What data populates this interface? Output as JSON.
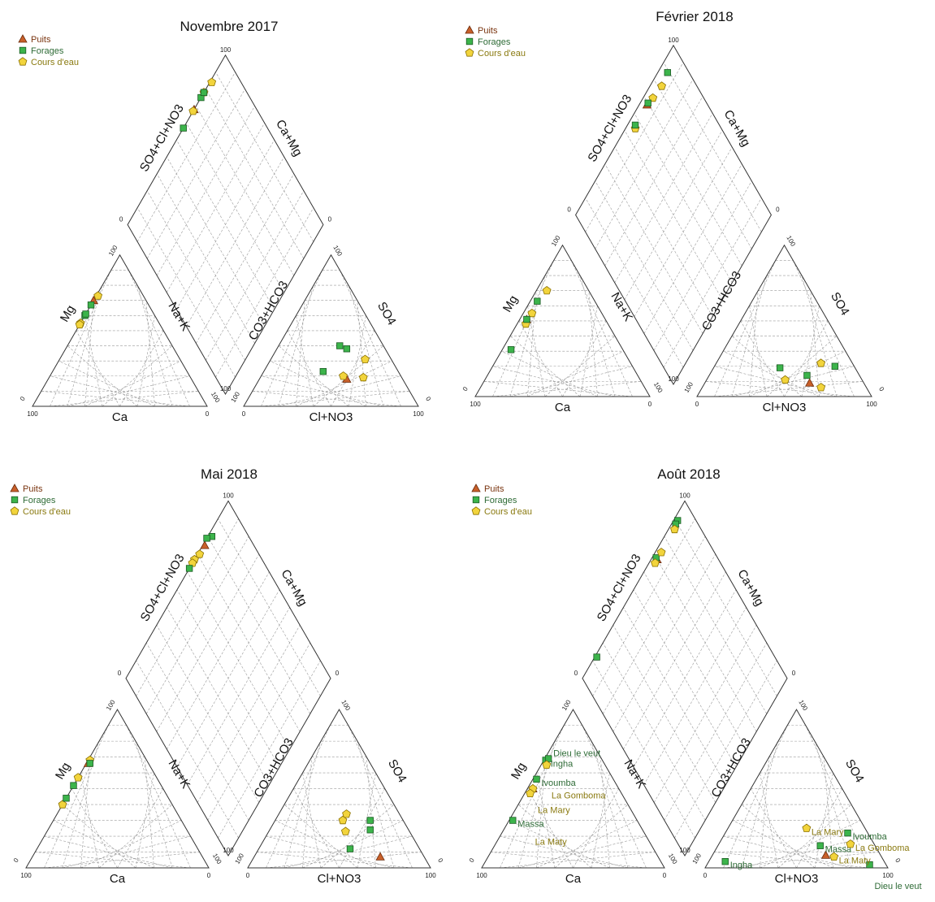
{
  "legend": {
    "puits": "Puits",
    "forages": "Forages",
    "cours": "Cours d'eau"
  },
  "axis_labels": {
    "ca": "Ca",
    "mg": "Mg",
    "nak": "Na+K",
    "hco3": "CO3+HCO3",
    "so4": "SO4",
    "cl": "Cl+NO3",
    "so4cl": "SO4+Cl+NO3",
    "camg": "Ca+Mg"
  },
  "ticks": {
    "min": "0",
    "max": "100"
  },
  "colors": {
    "puits": "#c8602a",
    "forages": "#3cb44b",
    "cours": "#f2d43c",
    "label_forages": "#2e6b36",
    "label_cours": "#8a7a10"
  },
  "chart_data": [
    {
      "type": "scatter",
      "subtype": "piper",
      "title": "Novembre 2017",
      "samples": [
        {
          "group": "puits",
          "cation": {
            "mg": 70,
            "nak": 0
          },
          "anion": {
            "so4": 18,
            "cl": 50
          }
        },
        {
          "group": "cours",
          "cation": {
            "mg": 73,
            "nak": 1
          },
          "anion": {
            "so4": 31,
            "cl": 54
          }
        },
        {
          "group": "cours",
          "cation": {
            "mg": 55,
            "nak": 0
          },
          "anion": {
            "so4": 20,
            "cl": 47
          }
        },
        {
          "group": "cours",
          "cation": {
            "mg": 54,
            "nak": 0
          },
          "anion": {
            "so4": 19,
            "cl": 59
          }
        },
        {
          "group": "forages",
          "cation": {
            "mg": 67,
            "nak": 0
          },
          "anion": {
            "so4": 40,
            "cl": 35
          }
        },
        {
          "group": "forages",
          "cation": {
            "mg": 60,
            "nak": 0
          },
          "anion": {
            "so4": 38,
            "cl": 40
          }
        },
        {
          "group": "forages",
          "cation": {
            "mg": 61,
            "nak": 0
          },
          "anion": {
            "so4": 23,
            "cl": 34
          }
        }
      ]
    },
    {
      "type": "scatter",
      "subtype": "piper",
      "title": "Février 2018",
      "samples": [
        {
          "group": "puits",
          "cation": {
            "mg": 51,
            "nak": 4
          },
          "anion": {
            "so4": 9,
            "cl": 60
          }
        },
        {
          "group": "cours",
          "cation": {
            "mg": 70,
            "nak": 6
          },
          "anion": {
            "so4": 22,
            "cl": 60
          }
        },
        {
          "group": "cours",
          "cation": {
            "mg": 55,
            "nak": 5
          },
          "anion": {
            "so4": 11,
            "cl": 45
          }
        },
        {
          "group": "cours",
          "cation": {
            "mg": 48,
            "nak": 5
          },
          "anion": {
            "so4": 6,
            "cl": 68
          }
        },
        {
          "group": "forages",
          "cation": {
            "mg": 63,
            "nak": 4
          },
          "anion": {
            "so4": 19,
            "cl": 38
          }
        },
        {
          "group": "forages",
          "cation": {
            "mg": 51,
            "nak": 4
          },
          "anion": {
            "so4": 14,
            "cl": 56
          }
        },
        {
          "group": "forages",
          "cation": {
            "mg": 31,
            "nak": 5
          },
          "anion": {
            "so4": 20,
            "cl": 69
          }
        }
      ]
    },
    {
      "type": "scatter",
      "subtype": "piper",
      "title": "Mai 2018",
      "samples": [
        {
          "group": "puits",
          "cation": {
            "mg": 66,
            "nak": 1
          },
          "anion": {
            "so4": 7,
            "cl": 69
          }
        },
        {
          "group": "cours",
          "cation": {
            "mg": 68,
            "nak": 1
          },
          "anion": {
            "so4": 34,
            "cl": 37
          }
        },
        {
          "group": "cours",
          "cation": {
            "mg": 57,
            "nak": 0
          },
          "anion": {
            "so4": 30,
            "cl": 37
          }
        },
        {
          "group": "cours",
          "cation": {
            "mg": 40,
            "nak": 0
          },
          "anion": {
            "so4": 23,
            "cl": 42
          }
        },
        {
          "group": "forages",
          "cation": {
            "mg": 66,
            "nak": 2
          },
          "anion": {
            "so4": 30,
            "cl": 52
          }
        },
        {
          "group": "forages",
          "cation": {
            "mg": 52,
            "nak": 0
          },
          "anion": {
            "so4": 24,
            "cl": 55
          }
        },
        {
          "group": "forages",
          "cation": {
            "mg": 44,
            "nak": 0
          },
          "anion": {
            "so4": 12,
            "cl": 50
          }
        }
      ]
    },
    {
      "type": "scatter",
      "subtype": "piper",
      "title": "Août 2018",
      "samples": [
        {
          "group": "puits",
          "label": "",
          "cation": {
            "mg": 50,
            "nak": 3
          },
          "anion": {
            "so4": 8,
            "cl": 62
          }
        },
        {
          "group": "forages",
          "label": "Ingha",
          "cation": {
            "mg": 68,
            "nak": 1
          },
          "anion": {
            "so4": 4,
            "cl": 9
          }
        },
        {
          "group": "forages",
          "label": "Dieu le veut",
          "cation": {
            "mg": 69,
            "nak": 2
          },
          "anion": {
            "so4": 2,
            "cl": 89
          }
        },
        {
          "group": "forages",
          "label": "Ivoumba",
          "cation": {
            "mg": 56,
            "nak": 2
          },
          "anion": {
            "so4": 22,
            "cl": 67
          }
        },
        {
          "group": "forages",
          "label": "Massa",
          "cation": {
            "mg": 30,
            "nak": 2
          },
          "anion": {
            "so4": 14,
            "cl": 56
          }
        },
        {
          "group": "cours",
          "label": "La Gomboma",
          "cation": {
            "mg": 65,
            "nak": 3
          },
          "anion": {
            "so4": 15,
            "cl": 72
          }
        },
        {
          "group": "cours",
          "label": "La Mary",
          "cation": {
            "mg": 50,
            "nak": 3
          },
          "anion": {
            "so4": 25,
            "cl": 43
          }
        },
        {
          "group": "cours",
          "label": "La Maty",
          "cation": {
            "mg": 47,
            "nak": 3
          },
          "anion": {
            "so4": 7,
            "cl": 67
          }
        }
      ]
    }
  ]
}
